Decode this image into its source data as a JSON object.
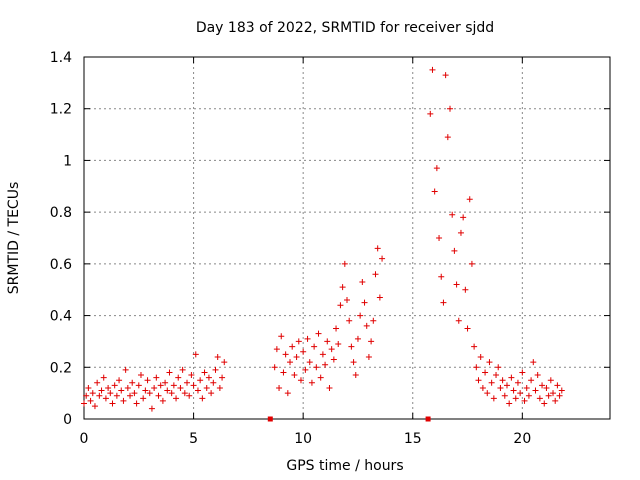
{
  "chart_data": {
    "type": "scatter",
    "title": "Day 183 of 2022, SRMTID for receiver sjdd",
    "xlabel": "GPS time / hours",
    "ylabel": "SRMTID / TECUs",
    "xlim": [
      0,
      24
    ],
    "ylim": [
      0,
      1.4
    ],
    "xticks": [
      0,
      5,
      10,
      15,
      20
    ],
    "yticks": [
      0,
      0.2,
      0.4,
      0.6,
      0.8,
      1,
      1.2,
      1.4
    ],
    "ytick_labels": [
      "0",
      "0.2",
      "0.4",
      "0.6",
      "0.8",
      "1",
      "1.2",
      "1.4"
    ],
    "grid": true,
    "marker": "+",
    "color": "#e00000",
    "gap_markers": [
      {
        "x": 8.5,
        "y": 0
      },
      {
        "x": 15.7,
        "y": 0
      }
    ],
    "series": [
      {
        "name": "SRMTID",
        "points": [
          [
            0.0,
            0.06
          ],
          [
            0.1,
            0.09
          ],
          [
            0.2,
            0.12
          ],
          [
            0.3,
            0.07
          ],
          [
            0.4,
            0.1
          ],
          [
            0.5,
            0.05
          ],
          [
            0.6,
            0.14
          ],
          [
            0.7,
            0.09
          ],
          [
            0.8,
            0.11
          ],
          [
            0.9,
            0.16
          ],
          [
            1.0,
            0.08
          ],
          [
            1.1,
            0.12
          ],
          [
            1.2,
            0.1
          ],
          [
            1.3,
            0.06
          ],
          [
            1.4,
            0.13
          ],
          [
            1.5,
            0.09
          ],
          [
            1.6,
            0.15
          ],
          [
            1.7,
            0.11
          ],
          [
            1.8,
            0.07
          ],
          [
            1.9,
            0.19
          ],
          [
            2.0,
            0.12
          ],
          [
            2.1,
            0.09
          ],
          [
            2.2,
            0.14
          ],
          [
            2.3,
            0.1
          ],
          [
            2.4,
            0.06
          ],
          [
            2.5,
            0.13
          ],
          [
            2.6,
            0.17
          ],
          [
            2.7,
            0.08
          ],
          [
            2.8,
            0.11
          ],
          [
            2.9,
            0.15
          ],
          [
            3.0,
            0.1
          ],
          [
            3.1,
            0.04
          ],
          [
            3.2,
            0.12
          ],
          [
            3.3,
            0.16
          ],
          [
            3.4,
            0.09
          ],
          [
            3.5,
            0.13
          ],
          [
            3.6,
            0.07
          ],
          [
            3.7,
            0.14
          ],
          [
            3.8,
            0.11
          ],
          [
            3.9,
            0.18
          ],
          [
            4.0,
            0.1
          ],
          [
            4.1,
            0.13
          ],
          [
            4.2,
            0.08
          ],
          [
            4.3,
            0.16
          ],
          [
            4.4,
            0.12
          ],
          [
            4.5,
            0.19
          ],
          [
            4.6,
            0.1
          ],
          [
            4.7,
            0.14
          ],
          [
            4.8,
            0.09
          ],
          [
            4.9,
            0.17
          ],
          [
            5.0,
            0.13
          ],
          [
            5.1,
            0.25
          ],
          [
            5.2,
            0.11
          ],
          [
            5.3,
            0.15
          ],
          [
            5.4,
            0.08
          ],
          [
            5.5,
            0.18
          ],
          [
            5.6,
            0.12
          ],
          [
            5.7,
            0.16
          ],
          [
            5.8,
            0.1
          ],
          [
            5.9,
            0.14
          ],
          [
            6.0,
            0.19
          ],
          [
            6.1,
            0.24
          ],
          [
            6.2,
            0.12
          ],
          [
            6.3,
            0.16
          ],
          [
            6.4,
            0.22
          ],
          [
            8.7,
            0.2
          ],
          [
            8.8,
            0.27
          ],
          [
            8.9,
            0.12
          ],
          [
            9.0,
            0.32
          ],
          [
            9.1,
            0.18
          ],
          [
            9.2,
            0.25
          ],
          [
            9.3,
            0.1
          ],
          [
            9.4,
            0.22
          ],
          [
            9.5,
            0.28
          ],
          [
            9.6,
            0.17
          ],
          [
            9.7,
            0.24
          ],
          [
            9.8,
            0.3
          ],
          [
            9.9,
            0.15
          ],
          [
            10.0,
            0.26
          ],
          [
            10.1,
            0.19
          ],
          [
            10.2,
            0.31
          ],
          [
            10.3,
            0.22
          ],
          [
            10.4,
            0.14
          ],
          [
            10.5,
            0.28
          ],
          [
            10.6,
            0.2
          ],
          [
            10.7,
            0.33
          ],
          [
            10.8,
            0.16
          ],
          [
            10.9,
            0.25
          ],
          [
            11.0,
            0.21
          ],
          [
            11.1,
            0.3
          ],
          [
            11.2,
            0.12
          ],
          [
            11.3,
            0.27
          ],
          [
            11.4,
            0.23
          ],
          [
            11.5,
            0.35
          ],
          [
            11.6,
            0.29
          ],
          [
            11.7,
            0.44
          ],
          [
            11.8,
            0.51
          ],
          [
            11.9,
            0.6
          ],
          [
            12.0,
            0.46
          ],
          [
            12.1,
            0.38
          ],
          [
            12.2,
            0.28
          ],
          [
            12.3,
            0.22
          ],
          [
            12.4,
            0.17
          ],
          [
            12.5,
            0.31
          ],
          [
            12.6,
            0.4
          ],
          [
            12.7,
            0.53
          ],
          [
            12.8,
            0.45
          ],
          [
            12.9,
            0.36
          ],
          [
            13.0,
            0.24
          ],
          [
            13.1,
            0.3
          ],
          [
            13.2,
            0.38
          ],
          [
            13.3,
            0.56
          ],
          [
            13.4,
            0.66
          ],
          [
            13.5,
            0.47
          ],
          [
            13.6,
            0.62
          ],
          [
            15.8,
            1.18
          ],
          [
            15.9,
            1.35
          ],
          [
            16.0,
            0.88
          ],
          [
            16.1,
            0.97
          ],
          [
            16.2,
            0.7
          ],
          [
            16.3,
            0.55
          ],
          [
            16.4,
            0.45
          ],
          [
            16.5,
            1.33
          ],
          [
            16.6,
            1.09
          ],
          [
            16.7,
            1.2
          ],
          [
            16.8,
            0.79
          ],
          [
            16.9,
            0.65
          ],
          [
            17.0,
            0.52
          ],
          [
            17.1,
            0.38
          ],
          [
            17.2,
            0.72
          ],
          [
            17.3,
            0.78
          ],
          [
            17.4,
            0.5
          ],
          [
            17.5,
            0.35
          ],
          [
            17.6,
            0.85
          ],
          [
            17.7,
            0.6
          ],
          [
            17.8,
            0.28
          ],
          [
            17.9,
            0.2
          ],
          [
            18.0,
            0.15
          ],
          [
            18.1,
            0.24
          ],
          [
            18.2,
            0.12
          ],
          [
            18.3,
            0.18
          ],
          [
            18.4,
            0.1
          ],
          [
            18.5,
            0.22
          ],
          [
            18.6,
            0.14
          ],
          [
            18.7,
            0.08
          ],
          [
            18.8,
            0.17
          ],
          [
            18.9,
            0.2
          ],
          [
            19.0,
            0.12
          ],
          [
            19.1,
            0.15
          ],
          [
            19.2,
            0.09
          ],
          [
            19.3,
            0.13
          ],
          [
            19.4,
            0.06
          ],
          [
            19.5,
            0.16
          ],
          [
            19.6,
            0.11
          ],
          [
            19.7,
            0.08
          ],
          [
            19.8,
            0.14
          ],
          [
            19.9,
            0.1
          ],
          [
            20.0,
            0.18
          ],
          [
            20.1,
            0.07
          ],
          [
            20.2,
            0.12
          ],
          [
            20.3,
            0.09
          ],
          [
            20.4,
            0.15
          ],
          [
            20.5,
            0.22
          ],
          [
            20.6,
            0.11
          ],
          [
            20.7,
            0.17
          ],
          [
            20.8,
            0.08
          ],
          [
            20.9,
            0.13
          ],
          [
            21.0,
            0.06
          ],
          [
            21.1,
            0.12
          ],
          [
            21.2,
            0.09
          ],
          [
            21.3,
            0.15
          ],
          [
            21.4,
            0.1
          ],
          [
            21.5,
            0.07
          ],
          [
            21.6,
            0.13
          ],
          [
            21.7,
            0.09
          ],
          [
            21.8,
            0.11
          ]
        ]
      }
    ]
  }
}
